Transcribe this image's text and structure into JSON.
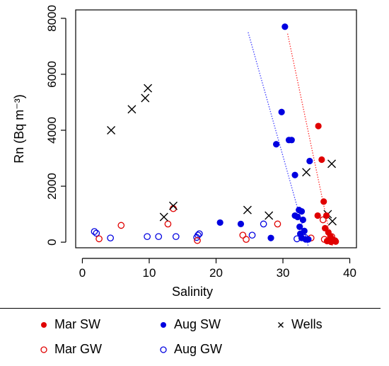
{
  "chart_data": {
    "type": "scatter",
    "xlabel": "Salinity",
    "ylabel": "Rn (Bq m⁻³)",
    "xlim": [
      -1,
      41
    ],
    "ylim": [
      -200,
      8300
    ],
    "xticks": [
      0,
      10,
      20,
      30,
      40
    ],
    "yticks": [
      0,
      2000,
      4000,
      6000,
      8000
    ],
    "grid": false,
    "legend_position": "bottom",
    "series": [
      {
        "name": "Mar SW",
        "marker": "filled-circle",
        "color": "#e00000",
        "points": [
          [
            35.3,
            4150
          ],
          [
            35.8,
            2950
          ],
          [
            36.1,
            1450
          ],
          [
            35.2,
            950
          ],
          [
            36.5,
            950
          ],
          [
            36.3,
            500
          ],
          [
            36.8,
            350
          ],
          [
            37.1,
            200
          ],
          [
            37.4,
            100
          ],
          [
            37.7,
            60
          ],
          [
            36.6,
            40
          ],
          [
            37.9,
            20
          ],
          [
            37.2,
            10
          ]
        ]
      },
      {
        "name": "Mar GW",
        "marker": "open-circle",
        "color": "#e00000",
        "points": [
          [
            2.5,
            120
          ],
          [
            5.8,
            600
          ],
          [
            12.8,
            650
          ],
          [
            13.6,
            1200
          ],
          [
            17.2,
            60
          ],
          [
            24,
            250
          ],
          [
            24.5,
            100
          ],
          [
            29.2,
            650
          ],
          [
            34.2,
            150
          ],
          [
            36,
            800
          ],
          [
            36.2,
            100
          ],
          [
            37.3,
            200
          ],
          [
            37.8,
            50
          ]
        ]
      },
      {
        "name": "Aug SW",
        "marker": "filled-circle",
        "color": "#0000e0",
        "points": [
          [
            30.3,
            7700
          ],
          [
            29.8,
            4650
          ],
          [
            30.9,
            3650
          ],
          [
            31.3,
            3650
          ],
          [
            29,
            3500
          ],
          [
            34,
            2900
          ],
          [
            31.8,
            2400
          ],
          [
            32.4,
            1150
          ],
          [
            32.8,
            1100
          ],
          [
            31.8,
            950
          ],
          [
            32.2,
            900
          ],
          [
            33,
            800
          ],
          [
            20.6,
            700
          ],
          [
            23.7,
            650
          ],
          [
            32.5,
            550
          ],
          [
            33.2,
            400
          ],
          [
            32.6,
            300
          ],
          [
            32.8,
            150
          ],
          [
            33.4,
            100
          ],
          [
            33.8,
            100
          ],
          [
            28.2,
            150
          ]
        ]
      },
      {
        "name": "Aug GW",
        "marker": "open-circle",
        "color": "#0000e0",
        "points": [
          [
            1.8,
            380
          ],
          [
            2.1,
            320
          ],
          [
            4.2,
            150
          ],
          [
            9.7,
            200
          ],
          [
            11.4,
            200
          ],
          [
            14,
            200
          ],
          [
            17.3,
            250
          ],
          [
            17.5,
            300
          ],
          [
            17.1,
            170
          ],
          [
            25.4,
            250
          ],
          [
            27.1,
            650
          ],
          [
            32.1,
            120
          ],
          [
            33.3,
            170
          ]
        ]
      },
      {
        "name": "Wells",
        "marker": "x",
        "color": "#000000",
        "points": [
          [
            4.3,
            4000
          ],
          [
            7.4,
            4750
          ],
          [
            9.4,
            5150
          ],
          [
            9.8,
            5500
          ],
          [
            12.2,
            900
          ],
          [
            13.6,
            1300
          ],
          [
            24.7,
            1150
          ],
          [
            27.9,
            950
          ],
          [
            33.5,
            2500
          ],
          [
            36.7,
            1000
          ],
          [
            37.3,
            2800
          ],
          [
            37.4,
            750
          ]
        ]
      }
    ],
    "trend_lines": [
      {
        "series": "Aug SW",
        "color": "#4040ff",
        "from": [
          24.8,
          7500
        ],
        "to": [
          33.8,
          -150
        ]
      },
      {
        "series": "Mar SW",
        "color": "#ff3030",
        "from": [
          30.7,
          7450
        ],
        "to": [
          37.4,
          -150
        ]
      }
    ]
  },
  "legend": {
    "items": [
      {
        "label": "Mar SW",
        "marker": "filled-circle",
        "color": "#e00000"
      },
      {
        "label": "Aug SW",
        "marker": "filled-circle",
        "color": "#0000e0"
      },
      {
        "label": "Wells",
        "marker": "x",
        "color": "#000000"
      },
      {
        "label": "Mar GW",
        "marker": "open-circle",
        "color": "#e00000"
      },
      {
        "label": "Aug GW",
        "marker": "open-circle",
        "color": "#0000e0"
      }
    ]
  }
}
